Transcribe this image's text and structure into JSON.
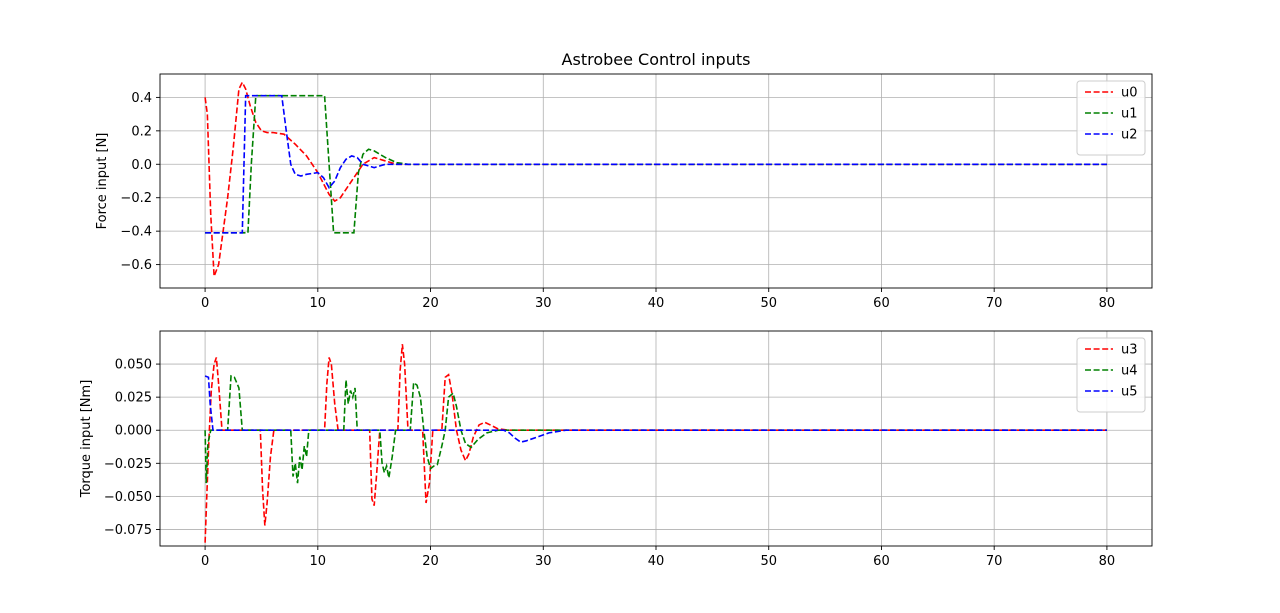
{
  "figure": {
    "title": "Astrobee Control inputs"
  },
  "chart_data": [
    {
      "type": "line",
      "title": "Astrobee Control inputs",
      "xlabel": "",
      "ylabel": "Force input [N]",
      "xlim": [
        -4,
        84
      ],
      "ylim": [
        -0.74,
        0.54
      ],
      "xticks": [
        0,
        10,
        20,
        30,
        40,
        50,
        60,
        70,
        80
      ],
      "yticks": [
        -0.6,
        -0.4,
        -0.2,
        0.0,
        0.2,
        0.4
      ],
      "ytick_labels": [
        "−0.6",
        "−0.4",
        "−0.2",
        "0.0",
        "0.2",
        "0.4"
      ],
      "grid": true,
      "legend_position": "top-right",
      "line_style": "dashed",
      "series": [
        {
          "name": "u0",
          "color": "#ff0000",
          "x": [
            0,
            0.2,
            0.5,
            0.8,
            1.2,
            2,
            2.5,
            3,
            3.3,
            3.6,
            4,
            4.5,
            5,
            5.5,
            6,
            7,
            8,
            9,
            10,
            11,
            11.5,
            12,
            13,
            14,
            15,
            16,
            17,
            18,
            20,
            80
          ],
          "y": [
            0.4,
            0.3,
            -0.3,
            -0.67,
            -0.6,
            -0.2,
            0.1,
            0.45,
            0.49,
            0.45,
            0.35,
            0.25,
            0.2,
            0.19,
            0.19,
            0.18,
            0.12,
            0.05,
            -0.05,
            -0.18,
            -0.22,
            -0.2,
            -0.1,
            0.0,
            0.04,
            0.02,
            0.0,
            0.0,
            0.0,
            0.0
          ]
        },
        {
          "name": "u1",
          "color": "#008000",
          "x": [
            0,
            3.8,
            4.1,
            4.5,
            10.6,
            11.4,
            12,
            13.2,
            13.6,
            14,
            14.5,
            15,
            16,
            17,
            18,
            20,
            80
          ],
          "y": [
            -0.41,
            -0.41,
            0.0,
            0.41,
            0.41,
            -0.41,
            -0.41,
            -0.41,
            -0.05,
            0.06,
            0.09,
            0.08,
            0.04,
            0.01,
            0.0,
            0.0,
            0.0
          ]
        },
        {
          "name": "u2",
          "color": "#0000ff",
          "x": [
            0,
            3.3,
            3.6,
            6.8,
            7.2,
            7.6,
            8,
            8.5,
            9,
            10,
            10.5,
            11,
            11.5,
            12,
            12.5,
            13,
            13.5,
            14,
            15,
            16,
            17,
            18,
            20,
            80
          ],
          "y": [
            -0.41,
            -0.41,
            0.41,
            0.41,
            0.2,
            0.0,
            -0.06,
            -0.07,
            -0.06,
            -0.05,
            -0.08,
            -0.14,
            -0.1,
            -0.02,
            0.03,
            0.05,
            0.04,
            0.0,
            -0.02,
            0.0,
            0.0,
            0.0,
            0.0,
            0.0
          ]
        }
      ]
    },
    {
      "type": "line",
      "title": "",
      "xlabel": "",
      "ylabel": "Torque input [Nm]",
      "xlim": [
        -4,
        84
      ],
      "ylim": [
        -0.0875,
        0.075
      ],
      "xticks": [
        0,
        10,
        20,
        30,
        40,
        50,
        60,
        70,
        80
      ],
      "yticks": [
        -0.075,
        -0.05,
        -0.025,
        0.0,
        0.025,
        0.05
      ],
      "ytick_labels": [
        "−0.075",
        "−0.050",
        "−0.025",
        "0.000",
        "0.025",
        "0.050"
      ],
      "grid": true,
      "legend_position": "top-right",
      "line_style": "dashed",
      "series": [
        {
          "name": "u3",
          "color": "#ff0000",
          "x": [
            0,
            0.15,
            0.35,
            0.55,
            0.8,
            1.0,
            1.2,
            1.5,
            4.9,
            5.1,
            5.3,
            5.5,
            5.8,
            6.1,
            10.6,
            10.8,
            11.0,
            11.2,
            11.5,
            11.8,
            14.6,
            14.8,
            15.0,
            15.2,
            15.5,
            17.1,
            17.3,
            17.5,
            17.7,
            18.0,
            19.3,
            19.6,
            19.9,
            20.2,
            21.0,
            21.3,
            21.6,
            21.9,
            22.3,
            22.7,
            23.1,
            23.4,
            23.8,
            24.3,
            24.8,
            25.3,
            26,
            27,
            80
          ],
          "y": [
            -0.085,
            -0.05,
            -0.005,
            0.03,
            0.05,
            0.055,
            0.035,
            0.0,
            0.0,
            -0.045,
            -0.072,
            -0.055,
            -0.02,
            0.0,
            0.0,
            0.035,
            0.055,
            0.05,
            0.02,
            0.0,
            0.0,
            -0.052,
            -0.057,
            -0.035,
            0.0,
            0.0,
            0.045,
            0.065,
            0.05,
            0.0,
            0.0,
            -0.055,
            -0.04,
            0.0,
            0.0,
            0.04,
            0.042,
            0.028,
            0.0,
            -0.015,
            -0.023,
            -0.018,
            -0.005,
            0.004,
            0.006,
            0.004,
            0.001,
            0.0,
            0.0
          ]
        },
        {
          "name": "u4",
          "color": "#008000",
          "x": [
            0,
            0.1,
            0.25,
            0.5,
            2.0,
            2.3,
            2.6,
            3.0,
            3.3,
            7.6,
            7.8,
            8.0,
            8.2,
            8.4,
            8.6,
            8.8,
            9.0,
            9.2,
            12.3,
            12.5,
            12.7,
            12.9,
            13.1,
            13.3,
            13.5,
            15.5,
            15.7,
            15.9,
            16.1,
            16.3,
            16.6,
            16.9,
            18.2,
            18.5,
            18.8,
            19.1,
            19.4,
            19.7,
            20.0,
            20.3,
            20.6,
            21.0,
            21.3,
            21.6,
            22.0,
            22.3,
            22.7,
            23.1,
            23.6,
            24.2,
            25,
            26,
            27,
            80
          ],
          "y": [
            0.0,
            -0.04,
            -0.01,
            0.0,
            0.0,
            0.041,
            0.04,
            0.032,
            0.0,
            0.0,
            -0.035,
            -0.025,
            -0.04,
            -0.02,
            -0.03,
            -0.012,
            -0.02,
            0.0,
            0.0,
            0.038,
            0.02,
            0.03,
            0.025,
            0.032,
            0.0,
            0.0,
            -0.025,
            -0.032,
            -0.027,
            -0.036,
            -0.02,
            0.0,
            0.0,
            0.036,
            0.034,
            0.025,
            0.0,
            -0.02,
            -0.029,
            -0.027,
            -0.026,
            -0.012,
            0.0,
            0.025,
            0.028,
            0.018,
            0.0,
            -0.01,
            -0.013,
            -0.007,
            -0.002,
            0.0,
            0.0,
            0.0
          ]
        },
        {
          "name": "u5",
          "color": "#0000ff",
          "x": [
            0,
            0.3,
            0.45,
            0.7,
            1.0,
            26.5,
            27,
            27.5,
            28,
            28.5,
            29.5,
            30.5,
            32,
            80
          ],
          "y": [
            0.041,
            0.04,
            0.02,
            0.0,
            0.0,
            0.0,
            -0.002,
            -0.006,
            -0.009,
            -0.008,
            -0.005,
            -0.002,
            0.0,
            0.0
          ]
        }
      ]
    }
  ]
}
